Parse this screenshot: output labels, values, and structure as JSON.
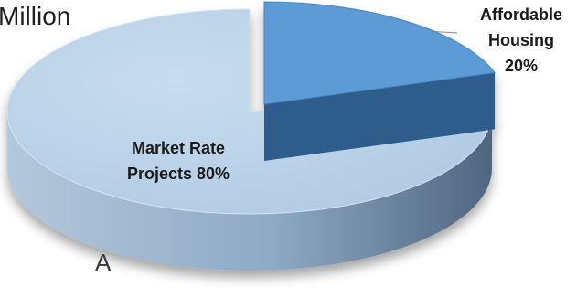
{
  "chart_data": {
    "type": "pie",
    "title": "Million",
    "categories": [
      "Affordable Housing",
      "Market Rate Projects"
    ],
    "values": [
      20,
      80
    ],
    "value_unit": "%",
    "data_labels": [
      [
        "Affordable",
        "Housing",
        "20%"
      ],
      [
        "Market Rate",
        "Projects 80%"
      ]
    ],
    "colors": [
      "#5b9bd5",
      "#bcd3ea"
    ],
    "style": "3d-exploded",
    "legend": "none",
    "grid": false,
    "footer_fragment": "A"
  }
}
